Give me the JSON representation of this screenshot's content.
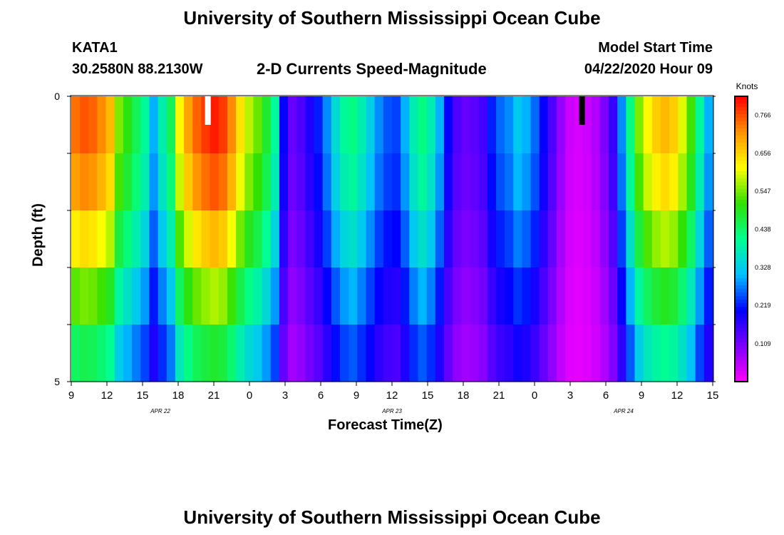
{
  "header": {
    "title": "University of Southern Mississippi Ocean Cube",
    "station": "KATA1",
    "coords": "30.2580N 88.2130W",
    "subtitle": "2-D Currents Speed-Magnitude",
    "model_label": "Model Start Time",
    "model_time": "04/22/2020 Hour 09"
  },
  "footer": {
    "title": "University of Southern Mississippi Ocean Cube"
  },
  "colorbar": {
    "unit": "Knots",
    "ticks": [
      "0.766",
      "0.656",
      "0.547",
      "0.438",
      "0.328",
      "0.219",
      "0.109"
    ],
    "tick_values": [
      0.766,
      0.656,
      0.547,
      0.438,
      0.328,
      0.219,
      0.109
    ],
    "range": [
      0.0,
      0.82
    ],
    "colors": [
      "#ff00ff",
      "#7a00ff",
      "#0000ff",
      "#00c0ff",
      "#00ff90",
      "#30e000",
      "#ffff00",
      "#ff9000",
      "#ff0000"
    ]
  },
  "chart_data": {
    "type": "heatmap",
    "title": "2-D Currents Speed-Magnitude",
    "xlabel": "Forecast Time(Z)",
    "ylabel": "Depth (ft)",
    "ylim": [
      0,
      5
    ],
    "y_ticks": [
      "0",
      "5"
    ],
    "x_ticks": [
      "9",
      "12",
      "15",
      "18",
      "21",
      "0",
      "3",
      "6",
      "9",
      "12",
      "15",
      "18",
      "21",
      "0",
      "3",
      "6",
      "9",
      "12",
      "15"
    ],
    "x_tick_hours": [
      0,
      3,
      6,
      9,
      12,
      15,
      18,
      21,
      24,
      27,
      30,
      33,
      36,
      39,
      42,
      45,
      48,
      51,
      54
    ],
    "date_labels": [
      {
        "label": "APR 22",
        "hour": 7.5
      },
      {
        "label": "APR 23",
        "hour": 27
      },
      {
        "label": "APR 24",
        "hour": 46.5
      }
    ],
    "x_hours": [
      0,
      54
    ],
    "depth_rows": 5,
    "unit": "Knots",
    "speed_profile": [
      0.74,
      0.76,
      0.75,
      0.72,
      0.68,
      0.55,
      0.5,
      0.45,
      0.4,
      0.3,
      0.38,
      0.45,
      0.62,
      0.7,
      0.75,
      0.78,
      0.8,
      0.78,
      0.72,
      0.64,
      0.58,
      0.54,
      0.48,
      0.4,
      0.2,
      0.12,
      0.14,
      0.18,
      0.22,
      0.28,
      0.35,
      0.4,
      0.42,
      0.38,
      0.33,
      0.28,
      0.25,
      0.24,
      0.3,
      0.38,
      0.42,
      0.38,
      0.3,
      0.2,
      0.14,
      0.12,
      0.13,
      0.15,
      0.22,
      0.26,
      0.28,
      0.32,
      0.3,
      0.26,
      0.2,
      0.14,
      0.08,
      0.04,
      0.03,
      0.04,
      0.06,
      0.1,
      0.16,
      0.28,
      0.42,
      0.55,
      0.62,
      0.66,
      0.68,
      0.66,
      0.6,
      0.52,
      0.4,
      0.3
    ],
    "depth_factors": [
      1.0,
      0.95,
      0.85,
      0.72,
      0.6
    ],
    "missing_cells": [
      {
        "hour": 11.5,
        "row": 0,
        "kind": "white"
      },
      {
        "hour": 43,
        "row": 0,
        "kind": "black"
      }
    ],
    "legend": "right"
  }
}
